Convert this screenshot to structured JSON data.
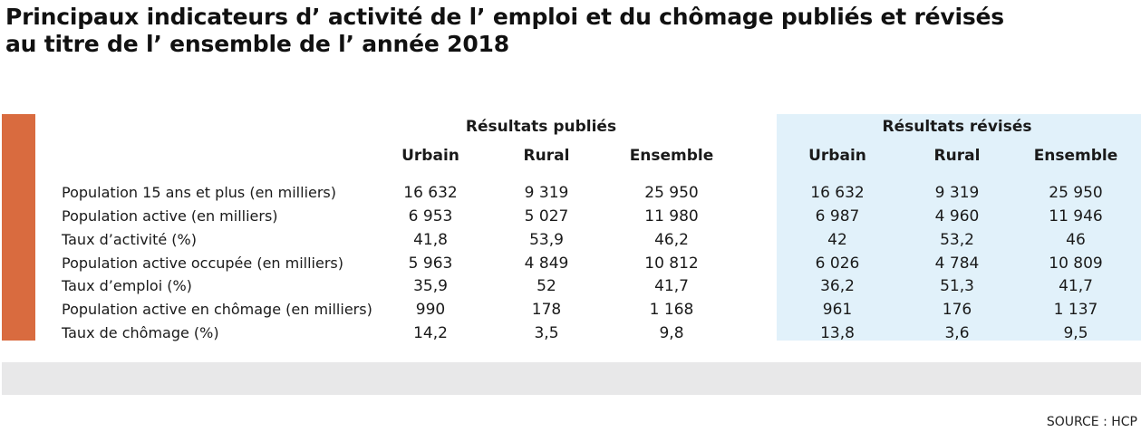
{
  "title": {
    "line1": "Principaux indicateurs d’ activité de l’ emploi et du chômage publiés et révisés",
    "line2": "au titre de l’ ensemble de l’ année 2018"
  },
  "groups": {
    "published": "Résultats publiés",
    "revised": "Résultats révisés"
  },
  "columns": {
    "published": [
      "Urbain",
      "Rural",
      "Ensemble"
    ],
    "revised": [
      "Urbain",
      "Rural",
      "Ensemble"
    ]
  },
  "rows": [
    {
      "label": "Population 15 ans et plus (en milliers)",
      "published": [
        "16 632",
        "9 319",
        "25 950"
      ],
      "revised": [
        "16 632",
        "9 319",
        "25 950"
      ]
    },
    {
      "label": "Population active (en milliers)",
      "published": [
        "6 953",
        "5 027",
        "11 980"
      ],
      "revised": [
        "6 987",
        "4 960",
        "11 946"
      ]
    },
    {
      "label": "Taux d’activité (%)",
      "published": [
        "41,8",
        "53,9",
        "46,2"
      ],
      "revised": [
        "42",
        "53,2",
        "46"
      ]
    },
    {
      "label": "Population active occupée (en milliers)",
      "published": [
        "5 963",
        "4 849",
        "10 812"
      ],
      "revised": [
        "6 026",
        "4 784",
        "10 809"
      ]
    },
    {
      "label": "Taux d’emploi (%)",
      "published": [
        "35,9",
        "52",
        "41,7"
      ],
      "revised": [
        "36,2",
        "51,3",
        "41,7"
      ]
    },
    {
      "label": "Population active en chômage (en milliers)",
      "published": [
        "990",
        "178",
        "1 168"
      ],
      "revised": [
        "961",
        "176",
        "1 137"
      ]
    },
    {
      "label": "Taux de chômage (%)",
      "published": [
        "14,2",
        "3,5",
        "9,8"
      ],
      "revised": [
        "13,8",
        "3,6",
        "9,5"
      ]
    }
  ],
  "source": "SOURCE :  HCP",
  "colors": {
    "accent_bar": "#d96b3f",
    "revised_background": "#e1f1fa",
    "footer_band": "#e8e8e9"
  }
}
